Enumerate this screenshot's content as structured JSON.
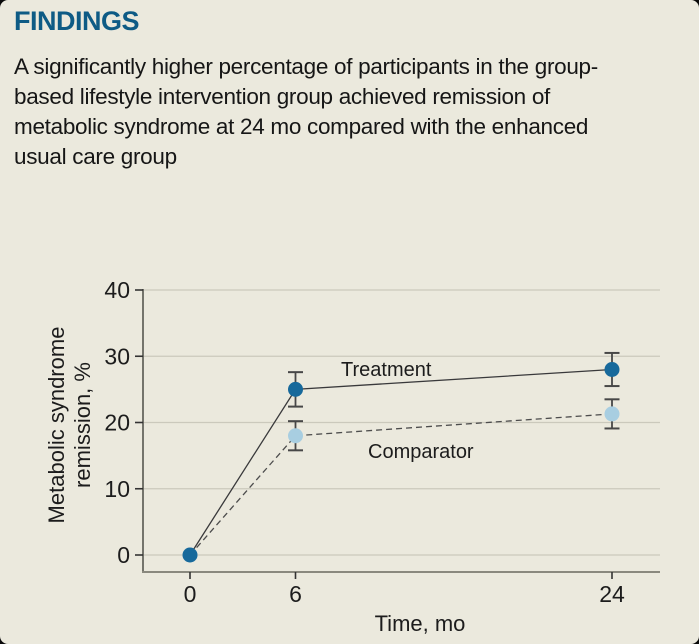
{
  "colors": {
    "background": "#ebe9dd",
    "page_behind": "#0a0a0a",
    "heading": "#0e5b85",
    "text": "#161616",
    "grid": "#cbc9bc",
    "y_axis": "#57574f",
    "x_axis": "#8a897e",
    "tick": "#333333",
    "error_bar": "#474747",
    "treatment": "#17699b",
    "comparator": "#a8cee1"
  },
  "findings": {
    "heading": "FINDINGS",
    "body_lines": [
      "A significantly higher percentage of participants in the group-",
      "based lifestyle intervention group achieved remission of",
      "metabolic syndrome at 24 mo compared with the enhanced",
      "usual care group"
    ]
  },
  "chart_data": {
    "type": "line",
    "x": [
      0,
      6,
      24
    ],
    "xticks": [
      0,
      6,
      24
    ],
    "yticks": [
      0,
      10,
      20,
      30,
      40
    ],
    "ylim": [
      0,
      40
    ],
    "xlabel": "Time, mo",
    "ylabel_lines": [
      "Metabolic syndrome",
      "remission, %"
    ],
    "grid": true,
    "legend_position": "inline-labels",
    "series": [
      {
        "name": "Comparator",
        "values": [
          0,
          18,
          21.3
        ],
        "errors": [
          0,
          2.2,
          2.2
        ],
        "marker_color": "#a8cee1",
        "line_color": "#4c4c4c",
        "dashed": true,
        "label_pos": {
          "x": 368,
          "y": 458
        }
      },
      {
        "name": "Treatment",
        "values": [
          0,
          25,
          28
        ],
        "errors": [
          0,
          2.6,
          2.5
        ],
        "marker_color": "#17699b",
        "line_color": "#39393b",
        "dashed": false,
        "label_pos": {
          "x": 341,
          "y": 376
        }
      }
    ]
  }
}
